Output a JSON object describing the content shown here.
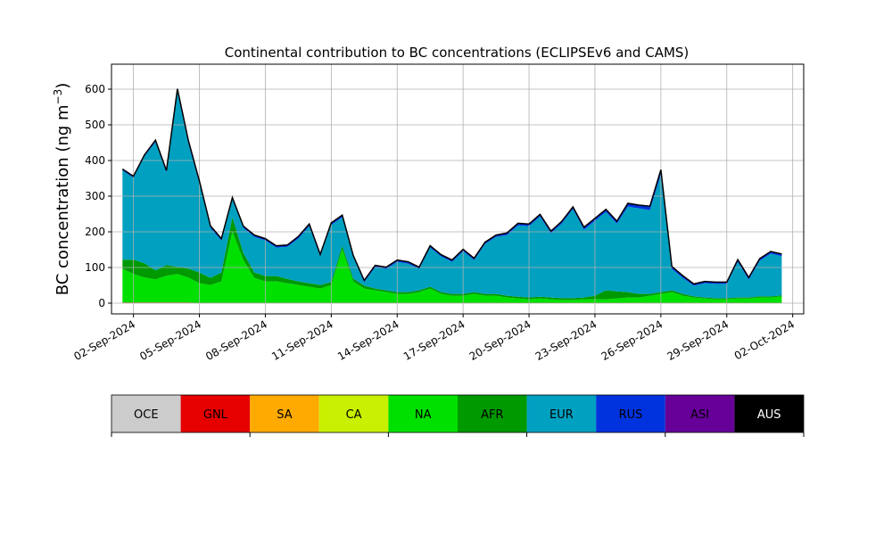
{
  "chart_data": {
    "type": "area",
    "title": "Continental contribution to BC concentrations (ECLIPSEv6 and CAMS)",
    "ylabel": "BC concentration (ng m",
    "ylabel_superscript": "−3",
    "ylabel_close": ")",
    "xlabel": "",
    "ylim": [
      -30,
      670
    ],
    "xlim": [
      "2024-09-01T00:00",
      "2024-10-02T12:00"
    ],
    "yticks": [
      0,
      100,
      200,
      300,
      400,
      500,
      600
    ],
    "xticks": [
      "02-Sep-2024",
      "05-Sep-2024",
      "08-Sep-2024",
      "11-Sep-2024",
      "14-Sep-2024",
      "17-Sep-2024",
      "20-Sep-2024",
      "23-Sep-2024",
      "26-Sep-2024",
      "29-Sep-2024",
      "02-Oct-2024"
    ],
    "grid": true,
    "stacked": true,
    "x": [
      "2024-09-01T12:00",
      "2024-09-02T00:00",
      "2024-09-02T12:00",
      "2024-09-03T00:00",
      "2024-09-03T12:00",
      "2024-09-04T00:00",
      "2024-09-04T12:00",
      "2024-09-05T00:00",
      "2024-09-05T12:00",
      "2024-09-06T00:00",
      "2024-09-06T12:00",
      "2024-09-07T00:00",
      "2024-09-07T12:00",
      "2024-09-08T00:00",
      "2024-09-08T12:00",
      "2024-09-09T00:00",
      "2024-09-09T12:00",
      "2024-09-10T00:00",
      "2024-09-10T12:00",
      "2024-09-11T00:00",
      "2024-09-11T12:00",
      "2024-09-12T00:00",
      "2024-09-12T12:00",
      "2024-09-13T00:00",
      "2024-09-13T12:00",
      "2024-09-14T00:00",
      "2024-09-14T12:00",
      "2024-09-15T00:00",
      "2024-09-15T12:00",
      "2024-09-16T00:00",
      "2024-09-16T12:00",
      "2024-09-17T00:00",
      "2024-09-17T12:00",
      "2024-09-18T00:00",
      "2024-09-18T12:00",
      "2024-09-19T00:00",
      "2024-09-19T12:00",
      "2024-09-20T00:00",
      "2024-09-20T12:00",
      "2024-09-21T00:00",
      "2024-09-21T12:00",
      "2024-09-22T00:00",
      "2024-09-22T12:00",
      "2024-09-23T00:00",
      "2024-09-23T12:00",
      "2024-09-24T00:00",
      "2024-09-24T12:00",
      "2024-09-25T00:00",
      "2024-09-25T12:00",
      "2024-09-26T00:00",
      "2024-09-26T12:00",
      "2024-09-27T00:00",
      "2024-09-27T12:00",
      "2024-09-28T00:00",
      "2024-09-28T12:00",
      "2024-09-29T00:00",
      "2024-09-29T12:00",
      "2024-09-30T00:00",
      "2024-09-30T12:00",
      "2024-10-01T00:00",
      "2024-10-01T12:00"
    ],
    "series": [
      {
        "name": "OCE",
        "color": "#cccccc",
        "values": [
          0,
          0,
          0,
          0,
          0,
          0,
          0,
          0,
          0,
          0,
          0,
          0,
          0,
          0,
          0,
          0,
          0,
          0,
          0,
          0,
          0,
          0,
          0,
          0,
          0,
          0,
          0,
          0,
          0,
          0,
          0,
          0,
          0,
          0,
          0,
          0,
          0,
          0,
          0,
          0,
          0,
          0,
          0,
          0,
          0,
          0,
          0,
          0,
          0,
          0,
          0,
          0,
          0,
          0,
          0,
          0,
          0,
          0,
          0,
          0,
          0
        ]
      },
      {
        "name": "GNL",
        "color": "#e60000",
        "values": [
          2,
          2,
          2,
          2,
          2,
          2,
          2,
          1,
          1,
          1,
          1,
          1,
          1,
          1,
          1,
          1,
          1,
          1,
          1,
          1,
          1,
          1,
          1,
          1,
          1,
          1,
          1,
          1,
          1,
          1,
          1,
          1,
          1,
          1,
          1,
          1,
          1,
          1,
          1,
          1,
          1,
          1,
          1,
          1,
          1,
          1,
          1,
          1,
          1,
          1,
          1,
          1,
          1,
          1,
          1,
          1,
          1,
          1,
          1,
          1,
          1
        ]
      },
      {
        "name": "SA",
        "color": "#ffaa00",
        "values": [
          0,
          0,
          0,
          0,
          0,
          0,
          0,
          0,
          0,
          0,
          0,
          0,
          0,
          0,
          0,
          0,
          0,
          0,
          0,
          0,
          0,
          0,
          0,
          0,
          0,
          0,
          0,
          0,
          0,
          0,
          0,
          0,
          0,
          0,
          0,
          0,
          0,
          0,
          0,
          0,
          0,
          0,
          0,
          0,
          0,
          0,
          0,
          0,
          0,
          0,
          0,
          0,
          0,
          0,
          0,
          0,
          0,
          0,
          0,
          0,
          0
        ]
      },
      {
        "name": "CA",
        "color": "#c8f000",
        "values": [
          0,
          0,
          0,
          0,
          0,
          0,
          0,
          0,
          0,
          0,
          0,
          0,
          0,
          0,
          0,
          0,
          0,
          0,
          0,
          0,
          0,
          0,
          0,
          0,
          0,
          0,
          0,
          0,
          0,
          0,
          0,
          0,
          0,
          0,
          0,
          0,
          0,
          0,
          0,
          0,
          0,
          0,
          0,
          0,
          0,
          0,
          0,
          0,
          0,
          0,
          0,
          0,
          0,
          0,
          0,
          0,
          0,
          0,
          0,
          0,
          0
        ]
      },
      {
        "name": "NA",
        "color": "#00e000",
        "values": [
          95,
          80,
          70,
          65,
          75,
          80,
          70,
          55,
          50,
          60,
          200,
          120,
          70,
          60,
          60,
          55,
          50,
          45,
          40,
          50,
          150,
          60,
          40,
          35,
          30,
          25,
          25,
          30,
          40,
          25,
          20,
          20,
          25,
          20,
          20,
          15,
          12,
          10,
          12,
          10,
          8,
          8,
          10,
          10,
          10,
          12,
          15,
          15,
          20,
          25,
          30,
          20,
          15,
          12,
          10,
          10,
          12,
          12,
          15,
          15,
          18
        ]
      },
      {
        "name": "AFR",
        "color": "#009900",
        "values": [
          25,
          40,
          40,
          25,
          30,
          20,
          25,
          30,
          20,
          25,
          40,
          20,
          15,
          15,
          15,
          12,
          10,
          10,
          10,
          8,
          10,
          8,
          8,
          5,
          5,
          5,
          5,
          5,
          5,
          5,
          5,
          5,
          5,
          5,
          5,
          5,
          5,
          5,
          5,
          5,
          5,
          5,
          5,
          10,
          25,
          20,
          15,
          10,
          5,
          5,
          5,
          5,
          3,
          3,
          3,
          3,
          3,
          3,
          3,
          3,
          3
        ]
      },
      {
        "name": "EUR",
        "color": "#00a0c0",
        "values": [
          250,
          230,
          300,
          360,
          260,
          490,
          350,
          250,
          140,
          90,
          50,
          70,
          100,
          100,
          80,
          90,
          120,
          160,
          80,
          160,
          80,
          60,
          10,
          60,
          60,
          85,
          80,
          60,
          110,
          100,
          90,
          120,
          90,
          140,
          160,
          170,
          200,
          200,
          225,
          180,
          210,
          250,
          190,
          210,
          220,
          190,
          240,
          240,
          235,
          330,
          60,
          45,
          30,
          40,
          40,
          40,
          100,
          50,
          100,
          120,
          110
        ]
      },
      {
        "name": "RUS",
        "color": "#0033dd",
        "values": [
          3,
          3,
          3,
          4,
          4,
          8,
          8,
          6,
          5,
          4,
          4,
          4,
          4,
          4,
          4,
          4,
          5,
          5,
          5,
          5,
          5,
          4,
          4,
          4,
          4,
          4,
          4,
          4,
          4,
          4,
          4,
          4,
          4,
          4,
          4,
          5,
          5,
          5,
          5,
          5,
          5,
          5,
          6,
          6,
          6,
          6,
          8,
          8,
          10,
          12,
          6,
          5,
          4,
          4,
          4,
          4,
          5,
          5,
          5,
          5,
          5
        ]
      },
      {
        "name": "ASI",
        "color": "#660099",
        "values": [
          1,
          1,
          1,
          1,
          1,
          1,
          1,
          1,
          1,
          1,
          1,
          1,
          1,
          1,
          1,
          1,
          1,
          1,
          1,
          1,
          1,
          1,
          1,
          1,
          1,
          1,
          1,
          1,
          1,
          1,
          1,
          1,
          1,
          1,
          1,
          1,
          1,
          1,
          1,
          1,
          1,
          1,
          1,
          1,
          1,
          1,
          1,
          1,
          1,
          1,
          1,
          1,
          1,
          1,
          1,
          1,
          1,
          1,
          1,
          1,
          1
        ]
      },
      {
        "name": "AUS",
        "color": "#000000",
        "values": [
          0,
          0,
          0,
          0,
          0,
          0,
          0,
          0,
          0,
          0,
          0,
          0,
          0,
          0,
          0,
          0,
          0,
          0,
          0,
          0,
          0,
          0,
          0,
          0,
          0,
          0,
          0,
          0,
          0,
          0,
          0,
          0,
          0,
          0,
          0,
          0,
          0,
          0,
          0,
          0,
          0,
          0,
          0,
          0,
          0,
          0,
          0,
          0,
          0,
          0,
          0,
          0,
          0,
          0,
          0,
          0,
          0,
          0,
          0,
          0,
          0
        ]
      }
    ],
    "legend_position": "bottom",
    "legend_labels": [
      "OCE",
      "GNL",
      "SA",
      "CA",
      "NA",
      "AFR",
      "EUR",
      "RUS",
      "ASI",
      "AUS"
    ],
    "legend_colors": [
      "#cccccc",
      "#e60000",
      "#ffaa00",
      "#c8f000",
      "#00e000",
      "#009900",
      "#00a0c0",
      "#0033dd",
      "#660099",
      "#000000"
    ],
    "legend_text_colors": [
      "#000000",
      "#000000",
      "#000000",
      "#000000",
      "#000000",
      "#000000",
      "#000000",
      "#000000",
      "#000000",
      "#ffffff"
    ]
  }
}
